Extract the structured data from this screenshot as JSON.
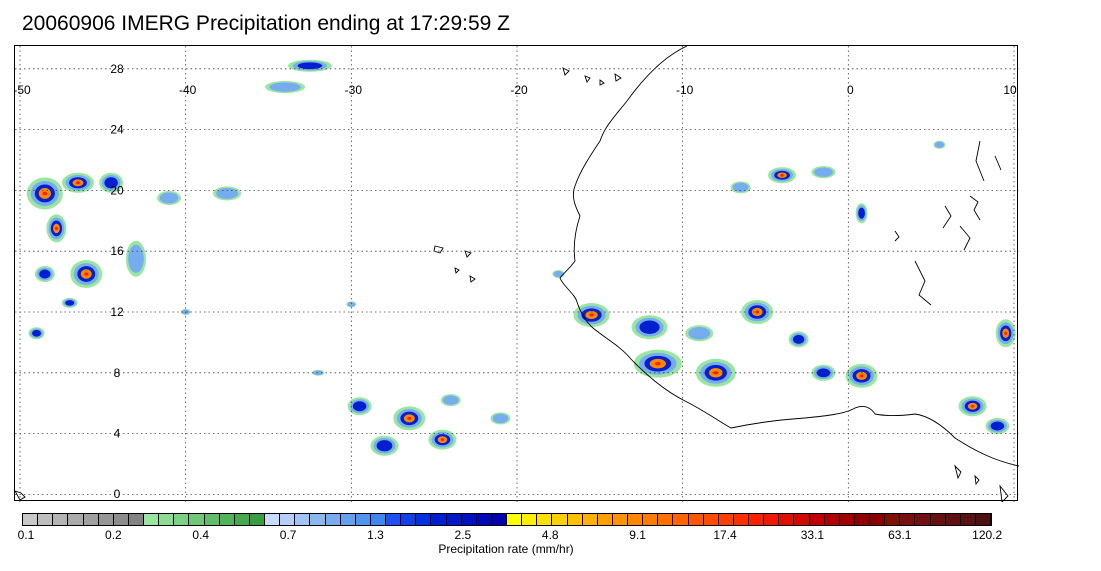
{
  "title": "20060906 IMERG Precipitation ending at 17:29:59 Z",
  "map": {
    "lon_labels": [
      "-50",
      "-40",
      "-30",
      "-20",
      "-10",
      "0",
      "10"
    ],
    "lon_values": [
      -50,
      -40,
      -30,
      -20,
      -10,
      0,
      10
    ],
    "lat_labels": [
      "28",
      "24",
      "20",
      "16",
      "12",
      "8",
      "4",
      "0"
    ],
    "lat_values": [
      28,
      24,
      20,
      16,
      12,
      8,
      4,
      0
    ],
    "lon_range": [
      -50,
      10
    ],
    "lat_range": [
      -0.5,
      29.5
    ],
    "grid": "dotted"
  },
  "colorbar": {
    "title": "Precipitation rate (mm/hr)",
    "tick_labels": [
      "0.1",
      "0.2",
      "0.4",
      "0.7",
      "1.3",
      "2.5",
      "4.8",
      "9.1",
      "17.4",
      "33.1",
      "63.1",
      "120.2"
    ],
    "colors": [
      "#c8c8c8",
      "#bebebe",
      "#b4b4b4",
      "#aaaaaa",
      "#a0a0a0",
      "#969696",
      "#8c8c8c",
      "#828282",
      "#98e6a0",
      "#8adc92",
      "#7cd284",
      "#6ec876",
      "#60be68",
      "#52b45a",
      "#44aa4c",
      "#369e3e",
      "#c8dcff",
      "#b4d0fa",
      "#a0c4f5",
      "#8cb8f0",
      "#78acf0",
      "#64a0f0",
      "#5094f0",
      "#3c88f0",
      "#2050f0",
      "#1040e8",
      "#0030e0",
      "#0020d0",
      "#0018c8",
      "#0010c0",
      "#0008b8",
      "#0000b0",
      "#ffff00",
      "#fff000",
      "#ffe000",
      "#ffd000",
      "#ffc000",
      "#ffb000",
      "#ffa000",
      "#ff9400",
      "#ff8800",
      "#ff7c00",
      "#ff7000",
      "#ff6400",
      "#ff5800",
      "#ff4c00",
      "#ff4000",
      "#ff3000",
      "#ff2000",
      "#f01800",
      "#e01000",
      "#d00800",
      "#c00000",
      "#b00000",
      "#a00000",
      "#900000",
      "#880000",
      "#801000",
      "#781010",
      "#701010",
      "#681010",
      "#601010",
      "#581010",
      "#501010"
    ]
  },
  "precip_blobs": [
    {
      "lon": -48.5,
      "lat": 19.8,
      "rx": 18,
      "ry": 16,
      "i": 3
    },
    {
      "lon": -46.5,
      "lat": 20.5,
      "rx": 16,
      "ry": 10,
      "i": 3
    },
    {
      "lon": -44.5,
      "lat": 20.5,
      "rx": 12,
      "ry": 10,
      "i": 2
    },
    {
      "lon": -47.8,
      "lat": 17.5,
      "rx": 10,
      "ry": 14,
      "i": 3
    },
    {
      "lon": -46.0,
      "lat": 14.5,
      "rx": 16,
      "ry": 14,
      "i": 3
    },
    {
      "lon": -48.5,
      "lat": 14.5,
      "rx": 10,
      "ry": 8,
      "i": 2
    },
    {
      "lon": -47.0,
      "lat": 12.6,
      "rx": 8,
      "ry": 5,
      "i": 2
    },
    {
      "lon": -49.0,
      "lat": 10.6,
      "rx": 8,
      "ry": 6,
      "i": 2
    },
    {
      "lon": -43.0,
      "lat": 15.5,
      "rx": 10,
      "ry": 18,
      "i": 1
    },
    {
      "lon": -41.0,
      "lat": 19.5,
      "rx": 12,
      "ry": 7,
      "i": 1
    },
    {
      "lon": -37.5,
      "lat": 19.8,
      "rx": 14,
      "ry": 7,
      "i": 1
    },
    {
      "lon": -32.5,
      "lat": 28.2,
      "rx": 22,
      "ry": 6,
      "i": 2
    },
    {
      "lon": -34.0,
      "lat": 26.8,
      "rx": 20,
      "ry": 6,
      "i": 1
    },
    {
      "lon": -26.5,
      "lat": 5.0,
      "rx": 16,
      "ry": 12,
      "i": 3
    },
    {
      "lon": -29.5,
      "lat": 5.8,
      "rx": 12,
      "ry": 9,
      "i": 2
    },
    {
      "lon": -28.0,
      "lat": 3.2,
      "rx": 14,
      "ry": 10,
      "i": 2
    },
    {
      "lon": -24.5,
      "lat": 3.6,
      "rx": 14,
      "ry": 10,
      "i": 3
    },
    {
      "lon": -24.0,
      "lat": 6.2,
      "rx": 10,
      "ry": 6,
      "i": 1
    },
    {
      "lon": -21.0,
      "lat": 5.0,
      "rx": 10,
      "ry": 6,
      "i": 1
    },
    {
      "lon": -15.5,
      "lat": 11.8,
      "rx": 18,
      "ry": 12,
      "i": 3
    },
    {
      "lon": -12.0,
      "lat": 11.0,
      "rx": 18,
      "ry": 12,
      "i": 2
    },
    {
      "lon": -11.5,
      "lat": 8.6,
      "rx": 24,
      "ry": 14,
      "i": 3
    },
    {
      "lon": -8.0,
      "lat": 8.0,
      "rx": 20,
      "ry": 14,
      "i": 3
    },
    {
      "lon": -9.0,
      "lat": 10.6,
      "rx": 14,
      "ry": 8,
      "i": 1
    },
    {
      "lon": -5.5,
      "lat": 12.0,
      "rx": 16,
      "ry": 12,
      "i": 3
    },
    {
      "lon": -3.0,
      "lat": 10.2,
      "rx": 10,
      "ry": 8,
      "i": 2
    },
    {
      "lon": -1.5,
      "lat": 8.0,
      "rx": 12,
      "ry": 8,
      "i": 2
    },
    {
      "lon": 0.8,
      "lat": 7.8,
      "rx": 16,
      "ry": 12,
      "i": 3
    },
    {
      "lon": -4.0,
      "lat": 21.0,
      "rx": 14,
      "ry": 8,
      "i": 3
    },
    {
      "lon": -1.5,
      "lat": 21.2,
      "rx": 12,
      "ry": 6,
      "i": 1
    },
    {
      "lon": -6.5,
      "lat": 20.2,
      "rx": 10,
      "ry": 6,
      "i": 1
    },
    {
      "lon": 0.8,
      "lat": 18.5,
      "rx": 6,
      "ry": 10,
      "i": 2
    },
    {
      "lon": 9.5,
      "lat": 10.6,
      "rx": 10,
      "ry": 14,
      "i": 3
    },
    {
      "lon": 7.5,
      "lat": 5.8,
      "rx": 14,
      "ry": 10,
      "i": 3
    },
    {
      "lon": 9.0,
      "lat": 4.5,
      "rx": 12,
      "ry": 8,
      "i": 2
    },
    {
      "lon": -17.5,
      "lat": 14.5,
      "rx": 6,
      "ry": 4,
      "i": 1
    },
    {
      "lon": -30.0,
      "lat": 12.5,
      "rx": 5,
      "ry": 3,
      "i": 1
    },
    {
      "lon": -40.0,
      "lat": 12.0,
      "rx": 5,
      "ry": 3,
      "i": 1
    },
    {
      "lon": -32.0,
      "lat": 8.0,
      "rx": 6,
      "ry": 3,
      "i": 1
    },
    {
      "lon": 5.5,
      "lat": 23.0,
      "rx": 6,
      "ry": 4,
      "i": 1
    }
  ]
}
